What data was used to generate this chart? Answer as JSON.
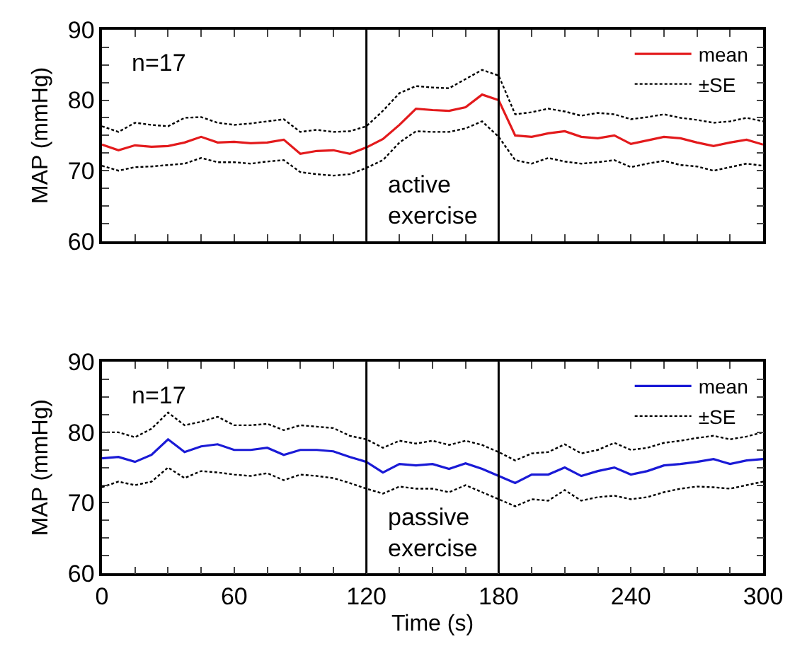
{
  "chart_data": [
    {
      "type": "line",
      "ylabel": "MAP (mmHg)",
      "legend": "top right",
      "tick_labels": "y",
      "x": [
        0,
        7.5,
        15,
        22.5,
        30,
        37.5,
        45,
        52.5,
        60,
        67.5,
        75,
        82.5,
        90,
        97.5,
        105,
        112.5,
        120,
        127.5,
        135,
        142.5,
        150,
        157.5,
        165,
        172.5,
        180,
        187.5,
        195,
        202.5,
        210,
        217.5,
        225,
        232.5,
        240,
        247.5,
        255,
        262.5,
        270,
        277.5,
        285,
        292.5,
        300
      ],
      "xlim": [
        0,
        300
      ],
      "xticks": [
        {
          "value": 0,
          "label": null
        },
        {
          "value": 15,
          "label": null
        },
        {
          "value": 30,
          "label": null
        },
        {
          "value": 45,
          "label": null
        },
        {
          "value": 60,
          "label": null
        },
        {
          "value": 75,
          "label": null
        },
        {
          "value": 90,
          "label": null
        },
        {
          "value": 105,
          "label": null
        },
        {
          "value": 120,
          "label": null
        },
        {
          "value": 135,
          "label": null
        },
        {
          "value": 150,
          "label": null
        },
        {
          "value": 165,
          "label": null
        },
        {
          "value": 180,
          "label": null
        },
        {
          "value": 195,
          "label": null
        },
        {
          "value": 210,
          "label": null
        },
        {
          "value": 225,
          "label": null
        },
        {
          "value": 240,
          "label": null
        },
        {
          "value": 255,
          "label": null
        },
        {
          "value": 270,
          "label": null
        },
        {
          "value": 285,
          "label": null
        },
        {
          "value": 300,
          "label": null
        }
      ],
      "ylim": [
        60,
        90
      ],
      "yticks": [
        60,
        {
          "value": 62.5,
          "label": null
        },
        {
          "value": 65,
          "label": null
        },
        {
          "value": 67.5,
          "label": null
        },
        70,
        {
          "value": 72.5,
          "label": null
        },
        {
          "value": 75,
          "label": null
        },
        {
          "value": 77.5,
          "label": null
        },
        80,
        {
          "value": 82.5,
          "label": null
        },
        {
          "value": 85,
          "label": null
        },
        {
          "value": 87.5,
          "label": null
        },
        90
      ],
      "series": [
        {
          "name": "mean",
          "color": "#e31a1c",
          "line_style": "solid",
          "values": [
            73.7,
            72.9,
            73.6,
            73.4,
            73.5,
            74.0,
            74.8,
            74.0,
            74.1,
            73.9,
            74.0,
            74.4,
            72.4,
            72.8,
            72.9,
            72.4,
            73.3,
            74.5,
            76.5,
            78.8,
            78.6,
            78.5,
            79.0,
            80.8,
            80.0,
            75.0,
            74.8,
            75.3,
            75.6,
            74.8,
            74.6,
            75.0,
            73.8,
            74.3,
            74.8,
            74.6,
            74.0,
            73.5,
            74.0,
            74.4,
            73.7
          ]
        },
        {
          "name": "±SE",
          "color": "#000000",
          "line_style": "dotted",
          "values": [
            76.3,
            75.5,
            76.8,
            76.5,
            76.3,
            77.5,
            77.6,
            76.8,
            76.5,
            76.7,
            77.0,
            77.3,
            75.5,
            75.8,
            75.5,
            75.6,
            76.3,
            78.5,
            81.0,
            82.0,
            81.8,
            81.7,
            83.0,
            84.3,
            83.5,
            78.0,
            78.3,
            78.8,
            78.4,
            77.8,
            78.2,
            78.0,
            77.3,
            77.6,
            78.0,
            77.5,
            77.2,
            76.8,
            77.0,
            77.5,
            77.0
          ]
        },
        {
          "color": "#000000",
          "line_style": "dotted",
          "values": [
            70.7,
            70.0,
            70.5,
            70.6,
            70.8,
            71.0,
            71.8,
            71.2,
            71.2,
            71.0,
            71.3,
            71.5,
            69.8,
            69.5,
            69.3,
            69.5,
            70.4,
            71.5,
            74.0,
            75.6,
            75.5,
            75.5,
            76.0,
            77.0,
            74.8,
            71.5,
            71.0,
            71.8,
            71.3,
            71.0,
            71.2,
            71.5,
            70.5,
            71.0,
            71.4,
            70.8,
            70.6,
            70.0,
            70.5,
            71.0,
            70.7
          ]
        }
      ],
      "ref_lines": [
        {
          "axis": "x",
          "value": 120,
          "color": "#000000"
        },
        {
          "axis": "x",
          "value": 180,
          "color": "#000000"
        }
      ],
      "annotations": [
        "n=17",
        "active\nexercise"
      ]
    },
    {
      "type": "line",
      "xlabel": "Time (s)",
      "ylabel": "MAP (mmHg)",
      "legend": "top right",
      "x": [
        0,
        7.5,
        15,
        22.5,
        30,
        37.5,
        45,
        52.5,
        60,
        67.5,
        75,
        82.5,
        90,
        97.5,
        105,
        112.5,
        120,
        127.5,
        135,
        142.5,
        150,
        157.5,
        165,
        172.5,
        180,
        187.5,
        195,
        202.5,
        210,
        217.5,
        225,
        232.5,
        240,
        247.5,
        255,
        262.5,
        270,
        277.5,
        285,
        292.5,
        300
      ],
      "xlim": [
        0,
        300
      ],
      "xticks": [
        0,
        {
          "value": 15,
          "label": null
        },
        {
          "value": 30,
          "label": null
        },
        {
          "value": 45,
          "label": null
        },
        60,
        {
          "value": 75,
          "label": null
        },
        {
          "value": 90,
          "label": null
        },
        {
          "value": 105,
          "label": null
        },
        120,
        {
          "value": 135,
          "label": null
        },
        {
          "value": 150,
          "label": null
        },
        {
          "value": 165,
          "label": null
        },
        180,
        {
          "value": 195,
          "label": null
        },
        {
          "value": 210,
          "label": null
        },
        {
          "value": 225,
          "label": null
        },
        240,
        {
          "value": 255,
          "label": null
        },
        {
          "value": 270,
          "label": null
        },
        {
          "value": 285,
          "label": null
        },
        300
      ],
      "ylim": [
        60,
        90
      ],
      "yticks": [
        60,
        {
          "value": 62.5,
          "label": null
        },
        {
          "value": 65,
          "label": null
        },
        {
          "value": 67.5,
          "label": null
        },
        70,
        {
          "value": 72.5,
          "label": null
        },
        {
          "value": 75,
          "label": null
        },
        {
          "value": 77.5,
          "label": null
        },
        80,
        {
          "value": 82.5,
          "label": null
        },
        {
          "value": 85,
          "label": null
        },
        {
          "value": 87.5,
          "label": null
        },
        90
      ],
      "series": [
        {
          "name": "mean",
          "color": "#1a1ad6",
          "line_style": "solid",
          "values": [
            76.3,
            76.5,
            75.8,
            76.8,
            79.0,
            77.2,
            78.0,
            78.3,
            77.5,
            77.5,
            77.8,
            76.8,
            77.5,
            77.5,
            77.3,
            76.5,
            75.8,
            74.3,
            75.5,
            75.3,
            75.5,
            74.8,
            75.6,
            74.8,
            73.8,
            72.8,
            74.0,
            74.0,
            75.0,
            73.8,
            74.5,
            75.0,
            74.0,
            74.5,
            75.3,
            75.5,
            75.8,
            76.2,
            75.5,
            76.0,
            76.2
          ]
        },
        {
          "name": "±SE",
          "color": "#000000",
          "line_style": "dotted",
          "values": [
            80.0,
            80.0,
            79.3,
            80.5,
            82.8,
            81.0,
            81.5,
            82.2,
            81.0,
            81.0,
            81.2,
            80.3,
            81.0,
            80.8,
            80.6,
            79.5,
            79.0,
            77.8,
            78.8,
            78.4,
            78.8,
            78.2,
            78.8,
            78.2,
            77.2,
            76.0,
            77.0,
            77.2,
            78.3,
            77.0,
            77.5,
            78.5,
            77.5,
            77.8,
            78.5,
            78.8,
            79.2,
            79.5,
            79.0,
            79.4,
            80.0
          ]
        },
        {
          "color": "#000000",
          "line_style": "dotted",
          "values": [
            72.2,
            73.0,
            72.5,
            73.0,
            75.0,
            73.5,
            74.5,
            74.3,
            74.0,
            73.8,
            74.2,
            73.2,
            74.0,
            73.8,
            73.5,
            72.8,
            72.0,
            71.3,
            72.3,
            72.0,
            72.0,
            71.5,
            72.5,
            71.5,
            70.5,
            69.5,
            70.5,
            70.3,
            71.8,
            70.3,
            70.8,
            71.0,
            70.5,
            70.8,
            71.5,
            72.0,
            72.3,
            72.2,
            72.0,
            72.5,
            73.0
          ]
        }
      ],
      "ref_lines": [
        {
          "axis": "x",
          "value": 120,
          "color": "#000000"
        },
        {
          "axis": "x",
          "value": 180,
          "color": "#000000"
        }
      ],
      "annotations": [
        "n=17",
        "passive\nexercise"
      ]
    }
  ]
}
